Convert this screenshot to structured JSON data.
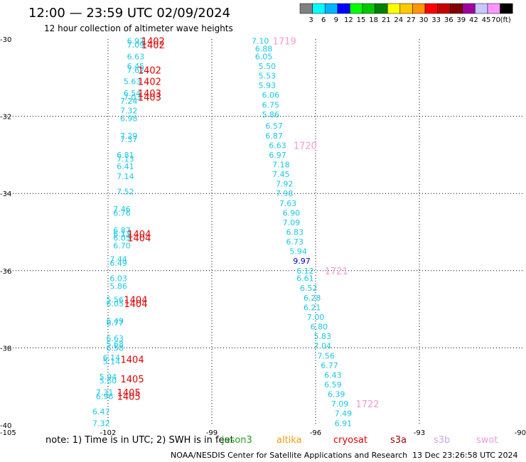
{
  "title": "12:00 — 23:59 UTC 02/09/2024",
  "subtitle": "12 hour collection of altimeter wave heights",
  "note": "note:  1) Time is in UTC;  2) SWH is in feet",
  "footer_left": "NOAA/NESDIS Center for Satellite Applications and Research",
  "footer_right": "13 Dec 23:26:58 UTC 2024",
  "legend": [
    {
      "name": "jason3",
      "color": "#1a9e1a"
    },
    {
      "name": "altika",
      "color": "#f59a0c"
    },
    {
      "name": "cryosat",
      "color": "#e00000"
    },
    {
      "name": "s3a",
      "color": "#a00000"
    },
    {
      "name": "s3b",
      "color": "#c8a8f0"
    },
    {
      "name": "swot",
      "color": "#f49ad8"
    }
  ],
  "colorbar": {
    "unit": "(ft)",
    "labels": [
      "3",
      "6",
      "9",
      "12",
      "15",
      "18",
      "21",
      "24",
      "27",
      "30",
      "33",
      "36",
      "39",
      "42",
      "45",
      "70"
    ],
    "colors": [
      "#808080",
      "#00ffff",
      "#00b4ff",
      "#0000ff",
      "#00ff00",
      "#00c800",
      "#008000",
      "#ffff00",
      "#ffc800",
      "#ff9600",
      "#ff0000",
      "#c80000",
      "#800000",
      "#a000a0",
      "#c8c8ff",
      "#ff96ff",
      "#000000"
    ]
  },
  "chart_data": {
    "type": "scatter",
    "xlim": [
      -105,
      -90
    ],
    "ylim": [
      -40,
      -30
    ],
    "x_ticks": [
      "-105",
      "-102",
      "-99",
      "-96",
      "-93",
      "-90"
    ],
    "y_ticks": [
      "-30",
      "-32",
      "-34",
      "-36",
      "-38",
      "-40"
    ],
    "grid": true,
    "swh_labels": [
      {
        "x": -101.2,
        "y": -30.05,
        "text": "6.97",
        "color": "#19c8e6"
      },
      {
        "x": -101.2,
        "y": -30.15,
        "text": "7.09",
        "color": "#19c8e6"
      },
      {
        "x": -101.2,
        "y": -30.45,
        "text": "6.63",
        "color": "#19c8e6"
      },
      {
        "x": -101.2,
        "y": -30.7,
        "text": "6.45",
        "color": "#19c8e6"
      },
      {
        "x": -101.2,
        "y": -30.8,
        "text": "7.62",
        "color": "#19c8e6"
      },
      {
        "x": -101.3,
        "y": -31.1,
        "text": "5.63",
        "color": "#19c8e6"
      },
      {
        "x": -101.3,
        "y": -31.4,
        "text": "6.54",
        "color": "#19c8e6"
      },
      {
        "x": -101.3,
        "y": -31.5,
        "text": "7.03",
        "color": "#19c8e6"
      },
      {
        "x": -101.4,
        "y": -31.6,
        "text": "7.24",
        "color": "#19c8e6"
      },
      {
        "x": -101.4,
        "y": -31.85,
        "text": "7.32",
        "color": "#19c8e6"
      },
      {
        "x": -101.4,
        "y": -32.05,
        "text": "6.98",
        "color": "#19c8e6"
      },
      {
        "x": -101.4,
        "y": -32.5,
        "text": "7.29",
        "color": "#19c8e6"
      },
      {
        "x": -101.4,
        "y": -32.6,
        "text": "7.37",
        "color": "#19c8e6"
      },
      {
        "x": -101.5,
        "y": -33.0,
        "text": "6.81",
        "color": "#19c8e6"
      },
      {
        "x": -101.5,
        "y": -33.1,
        "text": "7.13",
        "color": "#19c8e6"
      },
      {
        "x": -101.5,
        "y": -33.3,
        "text": "6.41",
        "color": "#19c8e6"
      },
      {
        "x": -101.5,
        "y": -33.55,
        "text": "7.14",
        "color": "#19c8e6"
      },
      {
        "x": -101.5,
        "y": -33.95,
        "text": "7.52",
        "color": "#19c8e6"
      },
      {
        "x": -101.6,
        "y": -34.4,
        "text": "7.46",
        "color": "#19c8e6"
      },
      {
        "x": -101.6,
        "y": -34.5,
        "text": "6.76",
        "color": "#19c8e6"
      },
      {
        "x": -101.6,
        "y": -34.95,
        "text": "6.87",
        "color": "#19c8e6"
      },
      {
        "x": -101.6,
        "y": -35.05,
        "text": "6.13",
        "color": "#19c8e6"
      },
      {
        "x": -101.6,
        "y": -35.15,
        "text": "6.05",
        "color": "#19c8e6"
      },
      {
        "x": -101.6,
        "y": -35.35,
        "text": "6.70",
        "color": "#19c8e6"
      },
      {
        "x": -101.7,
        "y": -35.7,
        "text": "7.44",
        "color": "#19c8e6"
      },
      {
        "x": -101.7,
        "y": -35.8,
        "text": "6.49",
        "color": "#19c8e6"
      },
      {
        "x": -101.7,
        "y": -36.2,
        "text": "6.03",
        "color": "#19c8e6"
      },
      {
        "x": -101.7,
        "y": -36.4,
        "text": "5.86",
        "color": "#19c8e6"
      },
      {
        "x": -101.8,
        "y": -36.75,
        "text": "5.56",
        "color": "#19c8e6"
      },
      {
        "x": -101.8,
        "y": -36.85,
        "text": "6.05",
        "color": "#19c8e6"
      },
      {
        "x": -101.8,
        "y": -37.3,
        "text": "6.49",
        "color": "#19c8e6"
      },
      {
        "x": -101.8,
        "y": -37.35,
        "text": "6.77",
        "color": "#19c8e6"
      },
      {
        "x": -101.8,
        "y": -37.75,
        "text": "6.63",
        "color": "#19c8e6"
      },
      {
        "x": -101.8,
        "y": -37.9,
        "text": "5.68",
        "color": "#19c8e6"
      },
      {
        "x": -101.8,
        "y": -38.0,
        "text": "6.58",
        "color": "#19c8e6"
      },
      {
        "x": -101.9,
        "y": -38.25,
        "text": "6.14",
        "color": "#19c8e6"
      },
      {
        "x": -101.9,
        "y": -38.35,
        "text": "5.14",
        "color": "#19c8e6"
      },
      {
        "x": -102.0,
        "y": -38.75,
        "text": "5.94",
        "color": "#19c8e6"
      },
      {
        "x": -102.0,
        "y": -38.85,
        "text": "5.60",
        "color": "#19c8e6"
      },
      {
        "x": -102.1,
        "y": -39.15,
        "text": "7.31",
        "color": "#19c8e6"
      },
      {
        "x": -102.1,
        "y": -39.25,
        "text": "6.96",
        "color": "#19c8e6"
      },
      {
        "x": -102.2,
        "y": -39.65,
        "text": "6.47",
        "color": "#19c8e6"
      },
      {
        "x": -102.2,
        "y": -39.95,
        "text": "7.32",
        "color": "#19c8e6"
      },
      {
        "x": -97.6,
        "y": -30.05,
        "text": "7.10",
        "color": "#19c8e6"
      },
      {
        "x": -97.5,
        "y": -30.25,
        "text": "6.88",
        "color": "#19c8e6"
      },
      {
        "x": -97.5,
        "y": -30.45,
        "text": "6.05",
        "color": "#19c8e6"
      },
      {
        "x": -97.4,
        "y": -30.7,
        "text": "5.50",
        "color": "#19c8e6"
      },
      {
        "x": -97.4,
        "y": -30.95,
        "text": "5.53",
        "color": "#19c8e6"
      },
      {
        "x": -97.4,
        "y": -31.2,
        "text": "5.93",
        "color": "#19c8e6"
      },
      {
        "x": -97.3,
        "y": -31.45,
        "text": "6.06",
        "color": "#19c8e6"
      },
      {
        "x": -97.3,
        "y": -31.7,
        "text": "6.75",
        "color": "#19c8e6"
      },
      {
        "x": -97.3,
        "y": -31.95,
        "text": "5.86",
        "color": "#19c8e6"
      },
      {
        "x": -97.2,
        "y": -32.25,
        "text": "6.57",
        "color": "#19c8e6"
      },
      {
        "x": -97.2,
        "y": -32.5,
        "text": "6.87",
        "color": "#19c8e6"
      },
      {
        "x": -97.1,
        "y": -32.75,
        "text": "6.63",
        "color": "#19c8e6"
      },
      {
        "x": -97.1,
        "y": -33.0,
        "text": "6.97",
        "color": "#19c8e6"
      },
      {
        "x": -97.0,
        "y": -33.25,
        "text": "7.18",
        "color": "#19c8e6"
      },
      {
        "x": -97.0,
        "y": -33.5,
        "text": "7.45",
        "color": "#19c8e6"
      },
      {
        "x": -96.9,
        "y": -33.75,
        "text": "7.92",
        "color": "#19c8e6"
      },
      {
        "x": -96.9,
        "y": -34.0,
        "text": "7.98",
        "color": "#19c8e6"
      },
      {
        "x": -96.8,
        "y": -34.25,
        "text": "7.63",
        "color": "#19c8e6"
      },
      {
        "x": -96.7,
        "y": -34.5,
        "text": "6.90",
        "color": "#19c8e6"
      },
      {
        "x": -96.7,
        "y": -34.75,
        "text": "7.09",
        "color": "#19c8e6"
      },
      {
        "x": -96.6,
        "y": -35.0,
        "text": "6.83",
        "color": "#19c8e6"
      },
      {
        "x": -96.6,
        "y": -35.25,
        "text": "6.73",
        "color": "#19c8e6"
      },
      {
        "x": -96.5,
        "y": -35.5,
        "text": "5.94",
        "color": "#19c8e6"
      },
      {
        "x": -96.4,
        "y": -35.75,
        "text": "9.97",
        "color": "#0000c8"
      },
      {
        "x": -96.3,
        "y": -36.0,
        "text": "6.12",
        "color": "#19c8e6"
      },
      {
        "x": -96.3,
        "y": -36.2,
        "text": "6.61",
        "color": "#19c8e6"
      },
      {
        "x": -96.2,
        "y": -36.45,
        "text": "6.52",
        "color": "#19c8e6"
      },
      {
        "x": -96.1,
        "y": -36.7,
        "text": "6.28",
        "color": "#19c8e6"
      },
      {
        "x": -96.1,
        "y": -36.95,
        "text": "6.21",
        "color": "#19c8e6"
      },
      {
        "x": -96.0,
        "y": -37.2,
        "text": "7.00",
        "color": "#19c8e6"
      },
      {
        "x": -95.9,
        "y": -37.45,
        "text": "6.80",
        "color": "#19c8e6"
      },
      {
        "x": -95.8,
        "y": -37.7,
        "text": "5.83",
        "color": "#19c8e6"
      },
      {
        "x": -95.8,
        "y": -37.95,
        "text": "7.04",
        "color": "#19c8e6"
      },
      {
        "x": -95.7,
        "y": -38.2,
        "text": "7.56",
        "color": "#19c8e6"
      },
      {
        "x": -95.6,
        "y": -38.45,
        "text": "6.77",
        "color": "#19c8e6"
      },
      {
        "x": -95.5,
        "y": -38.7,
        "text": "6.43",
        "color": "#19c8e6"
      },
      {
        "x": -95.5,
        "y": -38.95,
        "text": "6.59",
        "color": "#19c8e6"
      },
      {
        "x": -95.4,
        "y": -39.2,
        "text": "6.39",
        "color": "#19c8e6"
      },
      {
        "x": -95.3,
        "y": -39.45,
        "text": "7.09",
        "color": "#19c8e6"
      },
      {
        "x": -95.2,
        "y": -39.7,
        "text": "7.49",
        "color": "#19c8e6"
      },
      {
        "x": -95.2,
        "y": -39.95,
        "text": "6.91",
        "color": "#19c8e6"
      }
    ],
    "time_labels": [
      {
        "x": -100.7,
        "y": -30.05,
        "text": "1402",
        "color": "#e00000"
      },
      {
        "x": -100.7,
        "y": -30.15,
        "text": "1402",
        "color": "#e00000"
      },
      {
        "x": -100.8,
        "y": -30.8,
        "text": "1402",
        "color": "#e00000"
      },
      {
        "x": -100.8,
        "y": -31.1,
        "text": "1402",
        "color": "#e00000"
      },
      {
        "x": -100.8,
        "y": -31.4,
        "text": "1403",
        "color": "#e00000"
      },
      {
        "x": -100.8,
        "y": -31.5,
        "text": "1403",
        "color": "#e00000"
      },
      {
        "x": -101.1,
        "y": -35.05,
        "text": "1404",
        "color": "#e00000"
      },
      {
        "x": -101.1,
        "y": -35.15,
        "text": "1404",
        "color": "#e00000"
      },
      {
        "x": -101.2,
        "y": -36.75,
        "text": "1404",
        "color": "#e00000"
      },
      {
        "x": -101.2,
        "y": -36.85,
        "text": "1404",
        "color": "#e00000"
      },
      {
        "x": -101.3,
        "y": -38.3,
        "text": "1404",
        "color": "#e00000"
      },
      {
        "x": -101.3,
        "y": -38.8,
        "text": "1405",
        "color": "#e00000"
      },
      {
        "x": -101.4,
        "y": -39.15,
        "text": "1405",
        "color": "#e00000"
      },
      {
        "x": -101.4,
        "y": -39.25,
        "text": "1405",
        "color": "#e00000"
      },
      {
        "x": -96.9,
        "y": -30.05,
        "text": "1719",
        "color": "#f49ad8"
      },
      {
        "x": -96.3,
        "y": -32.75,
        "text": "1720",
        "color": "#f49ad8"
      },
      {
        "x": -95.4,
        "y": -36.0,
        "text": "1721",
        "color": "#f49ad8"
      },
      {
        "x": -94.5,
        "y": -39.45,
        "text": "1722",
        "color": "#f49ad8"
      }
    ]
  }
}
